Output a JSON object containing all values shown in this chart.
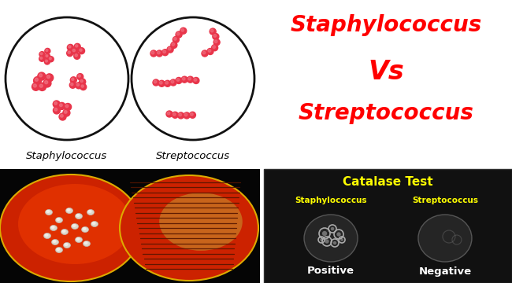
{
  "title_line1": "Staphylococcus",
  "title_vs": "Vs",
  "title_line2": "Streptococcus",
  "title_color": "#ff0000",
  "label_staph": "Staphylococcus",
  "label_strep": "Streptococcus",
  "label_color": "#000000",
  "catalase_title": "Catalase Test",
  "catalase_title_color": "#ffff00",
  "catalase_staph_label": "Staphylococcus",
  "catalase_strep_label": "Streptococcus",
  "catalase_label_color": "#ffff00",
  "positive_label": "Positive",
  "negative_label": "Negative",
  "catalase_bottom_color": "#ffffff",
  "bg_color": "#ffffff",
  "catalase_bg": "#111111",
  "bacteria_color": "#e8354a",
  "bacteria_color2": "#f07080",
  "circle_color": "#111111",
  "plate_bg": "#000000"
}
